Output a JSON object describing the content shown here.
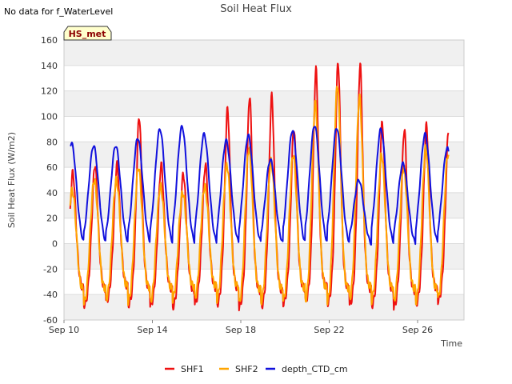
{
  "notice": "No data for f_WaterLevel",
  "chart_data": {
    "type": "line",
    "title": "Soil Heat Flux",
    "xlabel": "Time",
    "ylabel": "Soil Heat Flux (W/m2)",
    "badge": "HS_met",
    "xlim": [
      0,
      18.1
    ],
    "ylim": [
      -60,
      160
    ],
    "x_unit": "days since Sep 10",
    "xticks": [
      {
        "value": 0,
        "label": "Sep 10"
      },
      {
        "value": 4,
        "label": "Sep 14"
      },
      {
        "value": 8,
        "label": "Sep 18"
      },
      {
        "value": 12,
        "label": "Sep 22"
      },
      {
        "value": 16,
        "label": "Sep 26"
      }
    ],
    "yticks": [
      -60,
      -40,
      -20,
      0,
      20,
      40,
      60,
      80,
      100,
      120,
      140,
      160
    ],
    "x": [
      0.4,
      1.4,
      2.4,
      3.4,
      4.4,
      5.4,
      6.4,
      7.4,
      8.4,
      9.4,
      10.4,
      11.4,
      12.4,
      13.4,
      14.4,
      15.4,
      16.4,
      17.4
    ],
    "series": [
      {
        "name": "SHF1",
        "color": "#ee1111",
        "peak_values": [
          56,
          62,
          62,
          100,
          62,
          55,
          62,
          106,
          116,
          116,
          91,
          137,
          143,
          141,
          95,
          90,
          93,
          90
        ],
        "trough_values": [
          -47,
          -48,
          -45,
          -48,
          -48,
          -50,
          -47,
          -48,
          -50,
          -50,
          -47,
          -45,
          -47,
          -48,
          -49,
          -50,
          -48,
          -45
        ]
      },
      {
        "name": "SHF2",
        "color": "#ffa500",
        "peak_values": [
          42,
          50,
          50,
          60,
          45,
          40,
          45,
          62,
          75,
          65,
          70,
          110,
          125,
          115,
          70,
          60,
          75,
          70
        ],
        "trough_values": [
          -47,
          -47,
          -44,
          -46,
          -46,
          -45,
          -44,
          -45,
          -48,
          -47,
          -46,
          -46,
          -47,
          -45,
          -46,
          -47,
          -47,
          -44
        ]
      },
      {
        "name": "depth_CTD_cm",
        "color": "#1111dd",
        "peak_values": [
          79,
          77,
          77,
          83,
          90,
          92,
          86,
          81,
          85,
          66,
          89,
          93,
          91,
          50,
          90,
          63,
          86,
          75
        ],
        "trough_values": [
          -2,
          -2,
          -2,
          -2,
          -2,
          -2,
          -2,
          -2,
          -2,
          -2,
          -2,
          -2,
          -2,
          -2,
          -2,
          -2,
          -2,
          -2
        ]
      }
    ],
    "legend": [
      "SHF1",
      "SHF2",
      "depth_CTD_cm"
    ],
    "legend_position": "bottom"
  },
  "colors": {
    "band": "#f0f0f0",
    "grid": "#dcdcdc",
    "badge_fill": "#ffffcc",
    "badge_text": "#8b0000"
  }
}
